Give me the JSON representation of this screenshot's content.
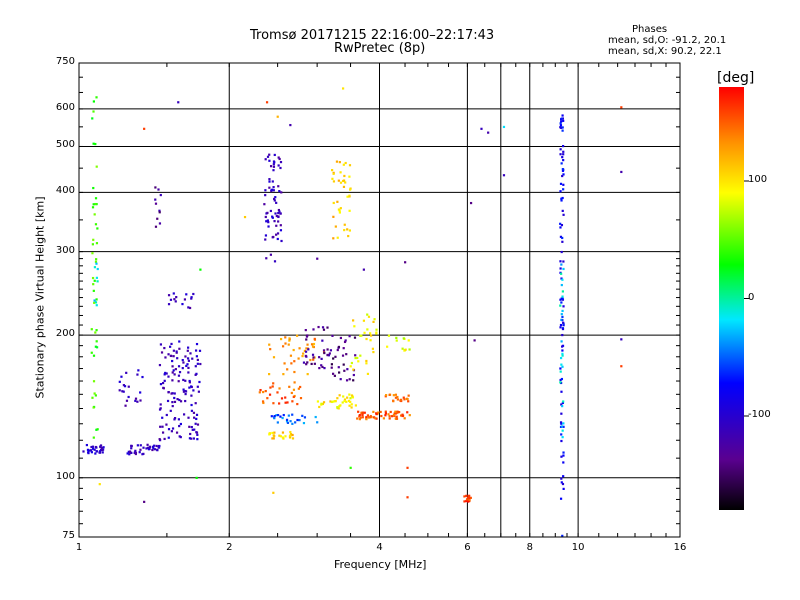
{
  "chart_data": {
    "type": "scatter",
    "title": "Tromsø 20171215 22:16:00–22:17:43",
    "subtitle": "RwPretec (8p)",
    "xlabel": "Frequency [MHz]",
    "ylabel": "Stationary phase Virtual Height [km]",
    "x_scale": "log",
    "y_scale": "log",
    "xlim": [
      1,
      16
    ],
    "ylim": [
      75,
      750
    ],
    "x_ticks": [
      1,
      2,
      4,
      6,
      8,
      10,
      16
    ],
    "x_ticks_labels": [
      "1",
      "2",
      "4",
      "6",
      "8",
      "10",
      "16"
    ],
    "y_ticks": [
      75,
      100,
      200,
      300,
      400,
      500,
      600,
      750
    ],
    "y_ticks_labels": [
      "75",
      "100",
      "200",
      "300",
      "400",
      "500",
      "600",
      "750"
    ],
    "grid_x": [
      1,
      2,
      4,
      6,
      7,
      8,
      10,
      16
    ],
    "grid_y": [
      100,
      200,
      300,
      400,
      500,
      600
    ],
    "phases_info": {
      "title": "Phases",
      "line_o": "mean, sd,O: -91.2, 20.1",
      "line_x": "mean, sd,X:  90.2, 22.1"
    },
    "colorbar": {
      "label": "[deg]",
      "range": [
        -180,
        180
      ],
      "ticks": [
        100,
        0,
        -100
      ],
      "ticks_labels": [
        "100",
        "0",
        "-100"
      ]
    },
    "clusters": [
      {
        "x_range": [
          1.02,
          1.12
        ],
        "y_range": [
          112,
          118
        ],
        "phase": -100,
        "count": 30
      },
      {
        "x_range": [
          1.06,
          1.09
        ],
        "y_range": [
          120,
          640
        ],
        "phase": 40,
        "count": 45
      },
      {
        "x_range": [
          1.07,
          1.09
        ],
        "y_range": [
          230,
          290
        ],
        "phase": -20,
        "count": 8
      },
      {
        "x_range": [
          1.25,
          1.45
        ],
        "y_range": [
          112,
          118
        ],
        "phase": -110,
        "count": 40
      },
      {
        "x_range": [
          1.45,
          1.75
        ],
        "y_range": [
          120,
          195
        ],
        "phase": -110,
        "count": 140
      },
      {
        "x_range": [
          1.2,
          1.35
        ],
        "y_range": [
          140,
          170
        ],
        "phase": -110,
        "count": 20
      },
      {
        "x_range": [
          1.42,
          1.47
        ],
        "y_range": [
          320,
          440
        ],
        "phase": -130,
        "count": 10
      },
      {
        "x_range": [
          1.5,
          1.7
        ],
        "y_range": [
          228,
          245
        ],
        "phase": -110,
        "count": 15
      },
      {
        "x_range": [
          2.35,
          2.55
        ],
        "y_range": [
          285,
          490
        ],
        "phase": -110,
        "count": 70
      },
      {
        "x_range": [
          2.3,
          2.8
        ],
        "y_range": [
          143,
          160
        ],
        "phase": 150,
        "count": 30
      },
      {
        "x_range": [
          2.4,
          2.7
        ],
        "y_range": [
          121,
          125
        ],
        "phase": 110,
        "count": 25
      },
      {
        "x_range": [
          2.4,
          3.0
        ],
        "y_range": [
          130,
          136
        ],
        "phase": -50,
        "count": 25
      },
      {
        "x_range": [
          2.4,
          3.1
        ],
        "y_range": [
          165,
          200
        ],
        "phase": 130,
        "count": 40
      },
      {
        "x_range": [
          2.8,
          3.2
        ],
        "y_range": [
          170,
          210
        ],
        "phase": -130,
        "count": 35
      },
      {
        "x_range": [
          3.2,
          3.5
        ],
        "y_range": [
          320,
          470
        ],
        "phase": 110,
        "count": 40
      },
      {
        "x_range": [
          3.2,
          3.6
        ],
        "y_range": [
          160,
          200
        ],
        "phase": -140,
        "count": 30
      },
      {
        "x_range": [
          3.0,
          3.6
        ],
        "y_range": [
          140,
          150
        ],
        "phase": 95,
        "count": 35
      },
      {
        "x_range": [
          3.5,
          4.0
        ],
        "y_range": [
          165,
          225
        ],
        "phase": 95,
        "count": 30
      },
      {
        "x_range": [
          3.6,
          4.6
        ],
        "y_range": [
          133,
          138
        ],
        "phase": 150,
        "count": 60
      },
      {
        "x_range": [
          4.1,
          4.6
        ],
        "y_range": [
          145,
          150
        ],
        "phase": 145,
        "count": 20
      },
      {
        "x_range": [
          4.1,
          4.6
        ],
        "y_range": [
          185,
          200
        ],
        "phase": 85,
        "count": 12
      },
      {
        "x_range": [
          5.9,
          6.1
        ],
        "y_range": [
          89,
          92
        ],
        "phase": 160,
        "count": 15
      },
      {
        "x_range": [
          9.2,
          9.35
        ],
        "y_range": [
          75,
          600
        ],
        "phase": -80,
        "count": 90
      },
      {
        "x_range": [
          9.2,
          9.35
        ],
        "y_range": [
          120,
          300
        ],
        "phase": -20,
        "count": 25
      }
    ],
    "points": [
      {
        "x": 1.58,
        "y": 620,
        "phase": -110
      },
      {
        "x": 1.35,
        "y": 545,
        "phase": 160
      },
      {
        "x": 2.38,
        "y": 620,
        "phase": 160
      },
      {
        "x": 2.5,
        "y": 578,
        "phase": 120
      },
      {
        "x": 2.65,
        "y": 555,
        "phase": -120
      },
      {
        "x": 3.38,
        "y": 663,
        "phase": 100
      },
      {
        "x": 3.0,
        "y": 290,
        "phase": -130
      },
      {
        "x": 3.72,
        "y": 275,
        "phase": -120
      },
      {
        "x": 4.5,
        "y": 285,
        "phase": -140
      },
      {
        "x": 1.75,
        "y": 275,
        "phase": 30
      },
      {
        "x": 1.72,
        "y": 100,
        "phase": 30
      },
      {
        "x": 2.15,
        "y": 355,
        "phase": 110
      },
      {
        "x": 6.4,
        "y": 545,
        "phase": -110
      },
      {
        "x": 6.6,
        "y": 535,
        "phase": -120
      },
      {
        "x": 7.1,
        "y": 550,
        "phase": -20
      },
      {
        "x": 7.1,
        "y": 435,
        "phase": -110
      },
      {
        "x": 6.1,
        "y": 380,
        "phase": -140
      },
      {
        "x": 6.2,
        "y": 195,
        "phase": -140
      },
      {
        "x": 12.2,
        "y": 605,
        "phase": 160
      },
      {
        "x": 12.2,
        "y": 442,
        "phase": -120
      },
      {
        "x": 12.2,
        "y": 196,
        "phase": -110
      },
      {
        "x": 12.2,
        "y": 172,
        "phase": 160
      },
      {
        "x": 3.5,
        "y": 105,
        "phase": 40
      },
      {
        "x": 4.55,
        "y": 105,
        "phase": 160
      },
      {
        "x": 4.55,
        "y": 91,
        "phase": 160
      },
      {
        "x": 2.45,
        "y": 93,
        "phase": 110
      },
      {
        "x": 1.35,
        "y": 89,
        "phase": -140
      },
      {
        "x": 1.1,
        "y": 97,
        "phase": 100
      }
    ]
  }
}
